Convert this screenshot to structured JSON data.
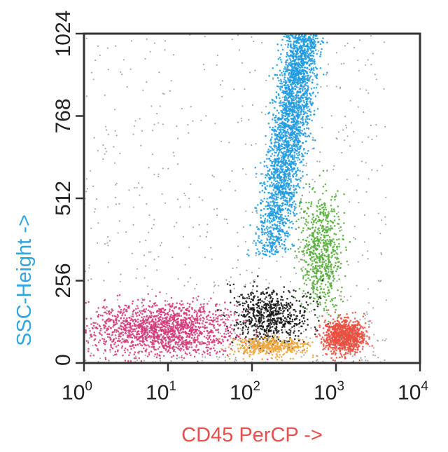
{
  "chart_data": {
    "type": "scatter",
    "title": "",
    "xlabel": "CD45 PerCP ->",
    "ylabel": "SSC-Height ->",
    "x_scale": "log",
    "xlim": [
      1,
      10000
    ],
    "ylim": [
      0,
      1024
    ],
    "x_ticks": [
      {
        "value": 1,
        "base": "10",
        "exp": "0"
      },
      {
        "value": 10,
        "base": "10",
        "exp": "1"
      },
      {
        "value": 100,
        "base": "10",
        "exp": "2"
      },
      {
        "value": 1000,
        "base": "10",
        "exp": "3"
      },
      {
        "value": 10000,
        "base": "10",
        "exp": "4"
      }
    ],
    "y_ticks": [
      {
        "value": 0,
        "label": "0"
      },
      {
        "value": 256,
        "label": "256"
      },
      {
        "value": 512,
        "label": "512"
      },
      {
        "value": 768,
        "label": "768"
      },
      {
        "value": 1024,
        "label": "1024"
      }
    ],
    "grid": false,
    "legend": "none",
    "colors": {
      "xlabel": "#e8504f",
      "ylabel": "#2fa6e0",
      "axis": "#333333"
    },
    "series": [
      {
        "color": "#1e9be0",
        "n": 2600,
        "x_log_range": [
          2.1,
          2.85
        ],
        "y_range": [
          330,
          1024
        ],
        "shape": "tilted"
      },
      {
        "color": "#d23a7a",
        "n": 1600,
        "x_log_range": [
          0,
          1.85
        ],
        "y_range": [
          20,
          190
        ]
      },
      {
        "color": "#ea4f3f",
        "n": 900,
        "x_log_range": [
          2.85,
          3.35
        ],
        "y_range": [
          25,
          140
        ]
      },
      {
        "color": "#52ad36",
        "n": 650,
        "x_log_range": [
          2.55,
          3.1
        ],
        "y_range": [
          170,
          520
        ]
      },
      {
        "color": "#141414",
        "n": 650,
        "x_log_range": [
          1.75,
          2.7
        ],
        "y_range": [
          60,
          240
        ]
      },
      {
        "color": "#f0a63a",
        "n": 420,
        "x_log_range": [
          1.75,
          2.7
        ],
        "y_range": [
          20,
          80
        ]
      },
      {
        "color": "#9a9a9a",
        "n": 750,
        "x_log_range": [
          0,
          3.6
        ],
        "y_range": [
          0,
          1024
        ]
      }
    ]
  }
}
